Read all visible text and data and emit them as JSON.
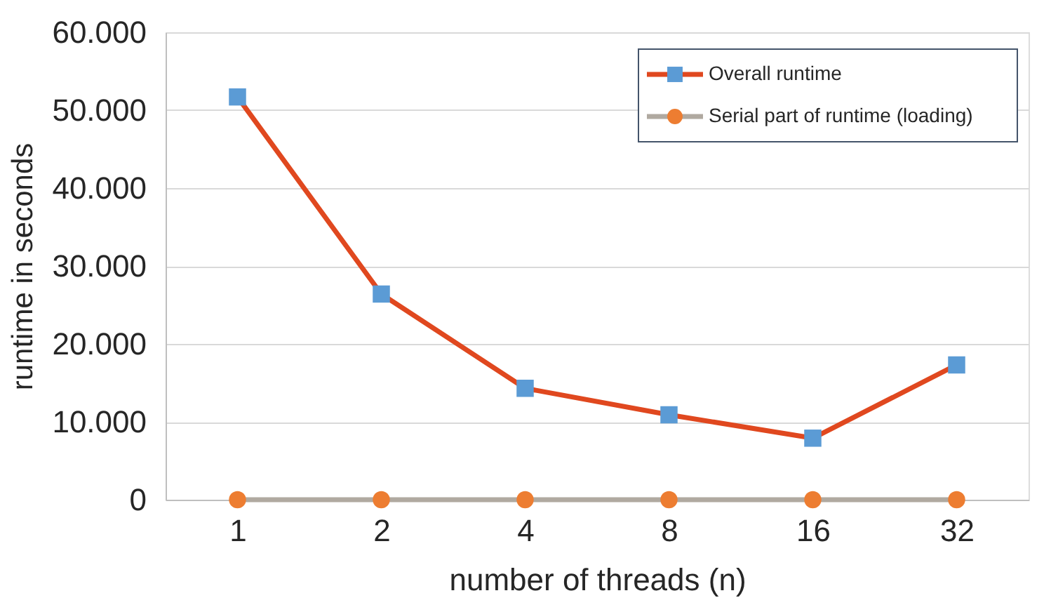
{
  "chart_data": {
    "type": "line",
    "xlabel": "number of threads (n)",
    "ylabel": "runtime in seconds",
    "categories": [
      "1",
      "2",
      "4",
      "8",
      "16",
      "32"
    ],
    "series": [
      {
        "name": "Overall runtime",
        "color": "#e0481f",
        "colors": [
          "#5b9bd5",
          "#5b9bd5",
          "#5b9bd5",
          "#5b9bd5",
          "#5b9bd5",
          "#5b9bd5"
        ],
        "marker": "square",
        "values": [
          51700,
          26400,
          14300,
          10900,
          7900,
          17300
        ]
      },
      {
        "name": "Serial part of runtime (loading)",
        "color": "#b0a9a0",
        "colors": [
          "#ed7d31",
          "#ed7d31",
          "#ed7d31",
          "#ed7d31",
          "#ed7d31",
          "#ed7d31"
        ],
        "marker": "circle",
        "values": [
          0,
          0,
          0,
          0,
          0,
          0
        ]
      }
    ],
    "ylim": [
      0,
      60000
    ],
    "yticks": [
      {
        "value": 0,
        "label": "0"
      },
      {
        "value": 10000,
        "label": "10.000"
      },
      {
        "value": 20000,
        "label": "20.000"
      },
      {
        "value": 30000,
        "label": "30.000"
      },
      {
        "value": 40000,
        "label": "40.000"
      },
      {
        "value": 50000,
        "label": "50.000"
      },
      {
        "value": 60000,
        "label": "60.000"
      }
    ],
    "grid": "y",
    "legend": "top right",
    "line_style": "solid"
  }
}
